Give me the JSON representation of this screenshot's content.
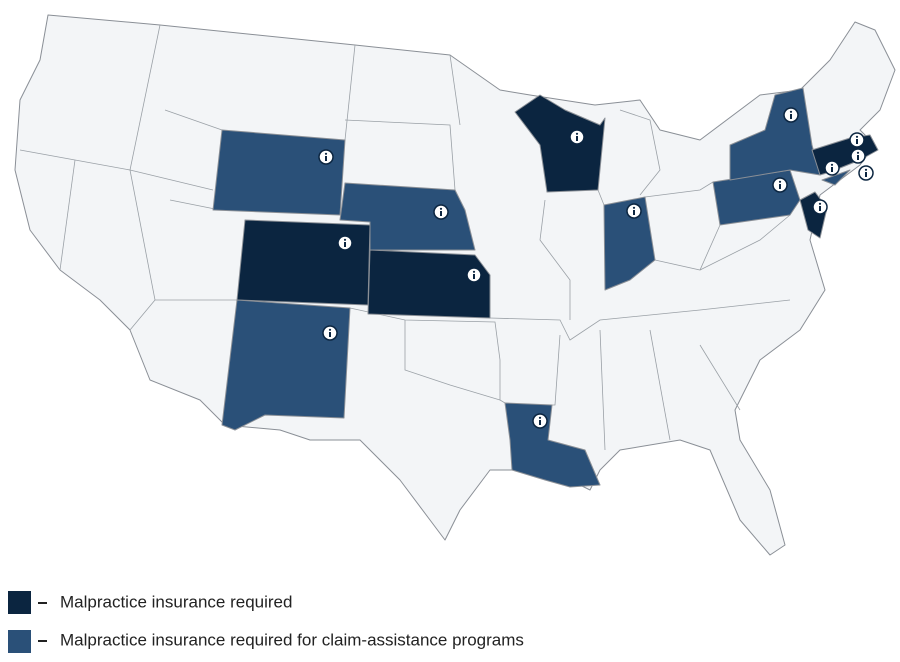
{
  "legend": [
    {
      "label": "Malpractice insurance required",
      "color": "#0b2540"
    },
    {
      "label": "Malpractice insurance required for claim-assistance programs",
      "color": "#2a5078"
    }
  ],
  "base_color": "#f3f5f7"
}
